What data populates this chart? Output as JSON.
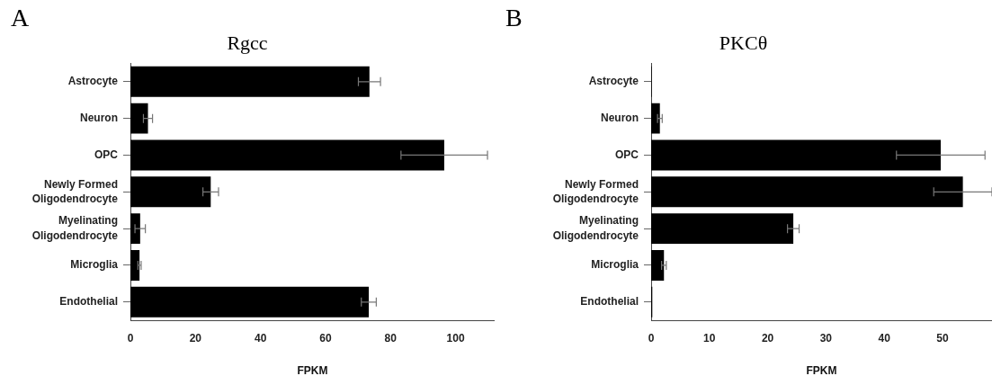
{
  "chart_data": [
    {
      "type": "bar",
      "orientation": "horizontal",
      "title": "Rgcc",
      "xlabel": "FPKM",
      "annotations": [
        "A"
      ],
      "categories": [
        "Astrocyte",
        "Neuron",
        "OPC",
        "Newly Formed Oligodendrocyte",
        "Myelinating Oligodendrocyte",
        "Microglia",
        "Endothelial"
      ],
      "values": [
        73.5,
        5.4,
        96.5,
        24.7,
        3.0,
        2.8,
        73.3
      ],
      "errors": [
        3.4,
        1.4,
        13.3,
        2.4,
        1.6,
        0.5,
        2.3
      ],
      "color": "#000000",
      "xlim": [
        0,
        112
      ],
      "xticks": [
        0,
        20,
        40,
        60,
        80,
        100
      ]
    },
    {
      "type": "bar",
      "orientation": "horizontal",
      "title": "PKCθ",
      "xlabel": "FPKM",
      "annotations": [
        "B"
      ],
      "categories": [
        "Astrocyte",
        "Neuron",
        "OPC",
        "Newly Formed Oligodendrocyte",
        "Myelinating Oligodendrocyte",
        "Microglia",
        "Endothelial"
      ],
      "values": [
        0.1,
        1.5,
        49.7,
        53.5,
        24.4,
        2.2,
        0.2
      ],
      "errors": [
        null,
        0.4,
        7.6,
        5.0,
        1.0,
        0.4,
        null
      ],
      "color": "#000000",
      "xlim": [
        0,
        58.5
      ],
      "xticks": [
        0,
        10,
        20,
        30,
        40,
        50
      ]
    }
  ]
}
